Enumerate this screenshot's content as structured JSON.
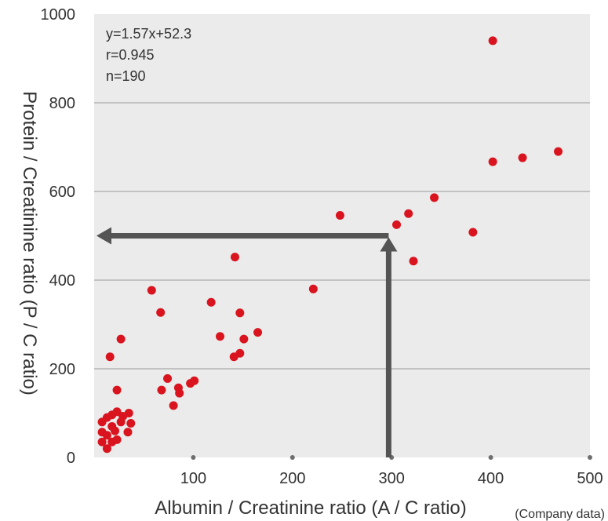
{
  "chart_data": {
    "type": "scatter",
    "xlabel": "Albumin / Creatinine ratio (A / C ratio)",
    "ylabel": "Protein / Creatinine ratio (P / C ratio)",
    "xlim": [
      0,
      500
    ],
    "ylim": [
      0,
      1000
    ],
    "x_ticks": [
      "100",
      "200",
      "300",
      "400",
      "500"
    ],
    "y_ticks": [
      "0",
      "200",
      "400",
      "600",
      "800",
      "1000"
    ],
    "grid": "horizontal",
    "background": "#ebebeb",
    "point_color": "#d9141e",
    "arrow_color": "#545454",
    "annotations": [
      "y=1.57x+52.3",
      "r=0.945",
      "n=190"
    ],
    "source_note": "(Company data)",
    "arrow_example": {
      "x": 297,
      "y": 500
    },
    "points": [
      [
        402,
        940
      ],
      [
        468,
        690
      ],
      [
        432,
        676
      ],
      [
        402,
        667
      ],
      [
        343,
        586
      ],
      [
        317,
        550
      ],
      [
        248,
        546
      ],
      [
        305,
        525
      ],
      [
        382,
        508
      ],
      [
        322,
        443
      ],
      [
        142,
        452
      ],
      [
        221,
        380
      ],
      [
        58,
        377
      ],
      [
        118,
        350
      ],
      [
        67,
        327
      ],
      [
        147,
        326
      ],
      [
        165,
        282
      ],
      [
        127,
        273
      ],
      [
        151,
        267
      ],
      [
        27,
        267
      ],
      [
        147,
        235
      ],
      [
        141,
        227
      ],
      [
        16,
        227
      ],
      [
        74,
        178
      ],
      [
        101,
        173
      ],
      [
        97,
        167
      ],
      [
        85,
        157
      ],
      [
        23,
        152
      ],
      [
        68,
        152
      ],
      [
        86,
        145
      ],
      [
        80,
        117
      ],
      [
        35,
        100
      ],
      [
        23,
        103
      ],
      [
        29,
        93
      ],
      [
        18,
        96
      ],
      [
        13,
        90
      ],
      [
        37,
        77
      ],
      [
        8,
        80
      ],
      [
        18,
        70
      ],
      [
        27,
        80
      ],
      [
        21,
        60
      ],
      [
        34,
        57
      ],
      [
        8,
        57
      ],
      [
        13,
        50
      ],
      [
        23,
        40
      ],
      [
        18,
        35
      ],
      [
        8,
        35
      ],
      [
        13,
        20
      ]
    ]
  }
}
